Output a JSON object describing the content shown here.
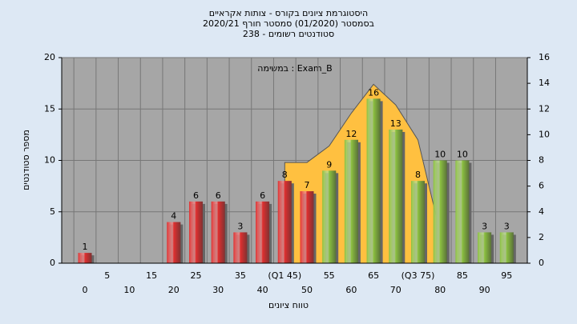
{
  "chart_data": {
    "type": "bar",
    "title": "היסטוגרמת ציונים בקורס - צותות אקראיים",
    "subtitle": [
      "בסמסטר  (01/2020)  סמסטר חורף  2020/21",
      "סטודנטים רשומים - 238"
    ],
    "annotation": "במשימה : Exam_B",
    "x_label": "טווח ציונים",
    "y_label": "מספר סטודנטים",
    "categories": [
      "0",
      "5",
      "10",
      "15",
      "20",
      "25",
      "30",
      "35",
      "40",
      "(Q1 45)",
      "50",
      "55",
      "60",
      "65",
      "70",
      "(Q3 75)",
      "80",
      "85",
      "90",
      "95"
    ],
    "values": [
      1,
      0,
      0,
      0,
      4,
      6,
      6,
      3,
      6,
      8,
      7,
      9,
      12,
      16,
      13,
      8,
      10,
      10,
      3,
      3
    ],
    "bar_colors": [
      "#e03030",
      "#e03030",
      "#e03030",
      "#e03030",
      "#e03030",
      "#e03030",
      "#e03030",
      "#e03030",
      "#e03030",
      "#e03030",
      "#e03030",
      "#8cc040",
      "#8cc040",
      "#8cc040",
      "#8cc040",
      "#8cc040",
      "#8cc040",
      "#8cc040",
      "#8cc040",
      "#8cc040"
    ],
    "area": {
      "color": "#ffc040",
      "values": [
        null,
        null,
        null,
        null,
        null,
        null,
        null,
        null,
        null,
        9.8,
        9.8,
        11.4,
        14.6,
        17.4,
        15.4,
        12,
        3,
        null,
        null,
        null
      ]
    },
    "ylim": [
      0,
      20
    ],
    "yticks": [
      0,
      5,
      10,
      15,
      20
    ],
    "y2lim": [
      0,
      16
    ],
    "y2ticks": [
      0,
      2,
      4,
      6,
      8,
      10,
      12,
      14,
      16
    ],
    "grid": true
  }
}
